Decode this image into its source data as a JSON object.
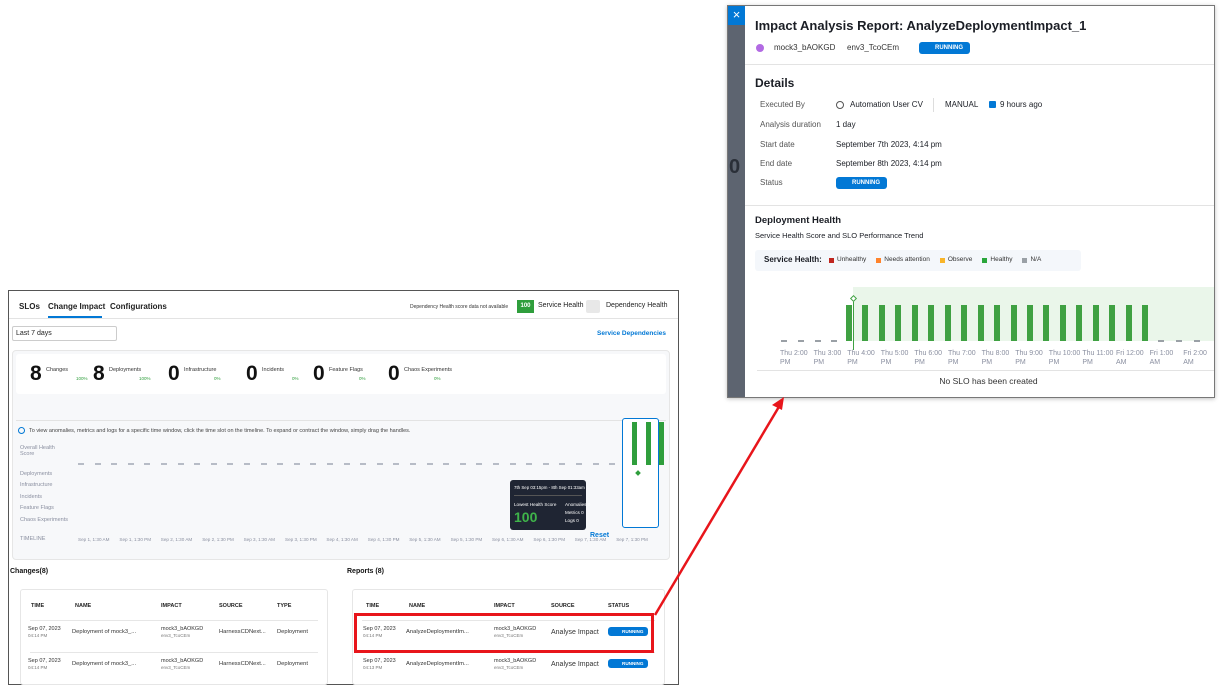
{
  "left": {
    "tabs": [
      "SLOs",
      "Change Impact",
      "Configurations"
    ],
    "dependency_note": "Dependency Health score data not available",
    "health_badge": "100",
    "service_health": "Service Health",
    "dependency_health": "Dependency Health",
    "range": "Last 7 days",
    "service_dependencies": "Service Dependencies",
    "summary": [
      {
        "count": "8",
        "label": "Changes",
        "pct": "100%"
      },
      {
        "count": "8",
        "label": "Deployments",
        "pct": "100%"
      },
      {
        "count": "0",
        "label": "Infrastructure",
        "pct": "0%"
      },
      {
        "count": "0",
        "label": "Incidents",
        "pct": "0%"
      },
      {
        "count": "0",
        "label": "Feature Flags",
        "pct": "0%"
      },
      {
        "count": "0",
        "label": "Chaos Experiments",
        "pct": "0%"
      }
    ],
    "info": "To view anomalies, metrics and logs for a specific time window, click the time slot on the timeline. To expand or contract the window, simply drag the handles.",
    "row_labels": [
      "Overall Health Score",
      "Deployments",
      "Infrastructure",
      "Incidents",
      "Feature Flags",
      "Chaos Experiments",
      "TIMELINE"
    ],
    "timeline": [
      "Sep 1, 1:30 AM",
      "Sep 1, 1:30 PM",
      "Sep 2, 1:30 AM",
      "Sep 2, 1:30 PM",
      "Sep 3, 1:30 AM",
      "Sep 3, 1:30 PM",
      "Sep 4, 1:30 AM",
      "Sep 4, 1:30 PM",
      "Sep 5, 1:30 AM",
      "Sep 5, 1:30 PM",
      "Sep 6, 1:30 AM",
      "Sep 6, 1:30 PM",
      "Sep 7, 1:30 AM",
      "Sep 7, 1:30 PM"
    ],
    "tooltip": {
      "range": "7th Sep 03:15pm - 8th Sep 01:33am",
      "lowest_label": "Lowest Health Score",
      "lowest": "100",
      "anomalies": "Anomalies 0",
      "metrics": "Metrics 0",
      "logs": "Logs 0"
    },
    "reset": "Reset",
    "changes": {
      "title": "Changes(8)",
      "headers": [
        "TIME",
        "NAME",
        "IMPACT",
        "SOURCE",
        "TYPE"
      ],
      "rows": [
        [
          "Sep 07, 2023",
          "04:14 PM",
          "Deployment of mock3_...",
          "mock3_bAOKGD",
          "env3_TcoCEm",
          "HarnessCDNext...",
          "Deployment"
        ],
        [
          "Sep 07, 2023",
          "04:14 PM",
          "Deployment of mock3_...",
          "mock3_bAOKGD",
          "env3_TcoCEm",
          "HarnessCDNext...",
          "Deployment"
        ]
      ]
    },
    "reports": {
      "title": "Reports (8)",
      "headers": [
        "TIME",
        "NAME",
        "IMPACT",
        "SOURCE",
        "STATUS"
      ],
      "rows": [
        [
          "Sep 07, 2023",
          "04:14 PM",
          "AnalyzeDeploymentIm...",
          "mock3_bAOKGD",
          "env3_TcoCEm",
          "Analyse Impact",
          "RUNNING"
        ],
        [
          "Sep 07, 2023",
          "04:13 PM",
          "AnalyzeDeploymentIm...",
          "mock3_bAOKGD",
          "env3_TcoCEm",
          "Analyse Impact",
          "RUNNING"
        ]
      ]
    }
  },
  "right": {
    "close": "×",
    "behind": "0",
    "title": "Impact Analysis Report: AnalyzeDeploymentImpact_1",
    "service": "mock3_bAOKGD",
    "env": "env3_TcoCEm",
    "status": "RUNNING",
    "details_title": "Details",
    "executed_by_label": "Executed By",
    "executed_by": "Automation User CV",
    "trigger": "MANUAL",
    "ago": "9 hours ago",
    "fields": [
      {
        "label": "Analysis duration",
        "value": "1 day"
      },
      {
        "label": "Start date",
        "value": "September 7th 2023, 4:14 pm"
      },
      {
        "label": "End date",
        "value": "September 8th 2023, 4:14 pm"
      }
    ],
    "status_label": "Status",
    "health_title": "Deployment Health",
    "health_subtitle": "Service Health Score and SLO Performance Trend",
    "legend_title": "Service Health:",
    "legend": [
      {
        "name": "Unhealthy",
        "color": "#c0261f"
      },
      {
        "name": "Needs attention",
        "color": "#ff832b"
      },
      {
        "name": "Observe",
        "color": "#f9b529"
      },
      {
        "name": "Healthy",
        "color": "#2aa63b"
      },
      {
        "name": "N/A",
        "color": "#9aa0a6"
      }
    ],
    "x_labels": [
      "Thu 2:00 PM",
      "Thu 3:00 PM",
      "Thu 4:00 PM",
      "Thu 5:00 PM",
      "Thu 6:00 PM",
      "Thu 7:00 PM",
      "Thu 8:00 PM",
      "Thu 9:00 PM",
      "Thu 10:00 PM",
      "Thu 11:00 PM",
      "Fri 12:00 AM",
      "Fri 1:00 AM",
      "Fri 2:00 AM"
    ],
    "no_slo": "No SLO has been created"
  }
}
